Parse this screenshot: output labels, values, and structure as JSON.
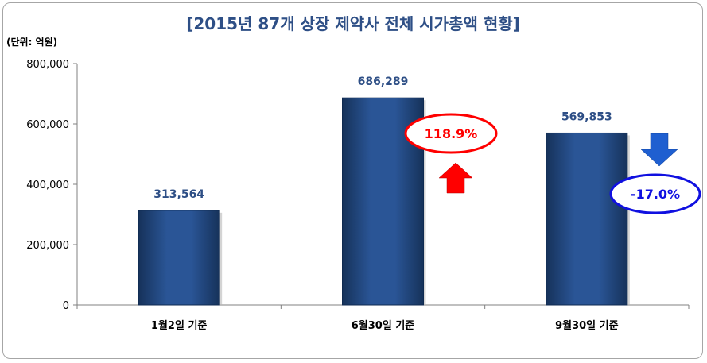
{
  "chart_data": {
    "type": "bar",
    "title": "[2015년 87개 상장 제약사 전체 시가총액 현황]",
    "unit_label": "(단위: 억원)",
    "categories": [
      "1월2일 기준",
      "6월30일 기준",
      "9월30일 기준"
    ],
    "values": [
      313564,
      686289,
      569853
    ],
    "value_labels": [
      "313,564",
      "686,289",
      "569,853"
    ],
    "ylim": [
      0,
      800000
    ],
    "yticks": [
      0,
      200000,
      400000,
      600000,
      800000
    ],
    "ytick_labels": [
      "0",
      "200,000",
      "400,000",
      "600,000",
      "800,000"
    ],
    "grid": false,
    "bar_color": "#1f4478",
    "annotations": [
      {
        "text": "118.9%",
        "direction": "up",
        "color": "#ff0000"
      },
      {
        "text": "-17.0%",
        "direction": "down",
        "color": "#1010e0"
      }
    ]
  }
}
